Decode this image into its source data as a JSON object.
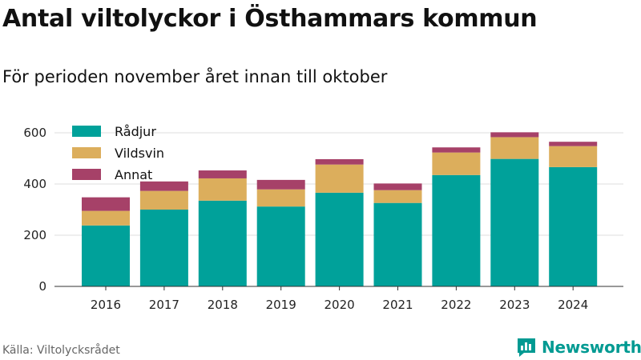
{
  "title": "Antal viltolyckor i Östhammars kommun",
  "subtitle": "För perioden november året innan till oktober",
  "source": "Källa: Viltolycksrådet",
  "brand": "Newsworthy",
  "brand_icon": "bar-chart-logo-icon",
  "chart_data": {
    "type": "bar",
    "stacked": true,
    "categories": [
      "2016",
      "2017",
      "2018",
      "2019",
      "2020",
      "2021",
      "2022",
      "2023",
      "2024"
    ],
    "series": [
      {
        "name": "Rådjur",
        "color": "#00a19a",
        "values": [
          238,
          300,
          335,
          312,
          366,
          326,
          435,
          498,
          466
        ]
      },
      {
        "name": "Vildsvin",
        "color": "#dcae5c",
        "values": [
          57,
          73,
          87,
          67,
          110,
          50,
          88,
          85,
          82
        ]
      },
      {
        "name": "Annat",
        "color": "#a64168",
        "values": [
          53,
          37,
          31,
          37,
          21,
          26,
          20,
          19,
          17
        ]
      }
    ],
    "yticks": [
      0,
      200,
      400,
      600
    ],
    "ylim": [
      0,
      600
    ],
    "grid": true,
    "legend": "top-left"
  }
}
